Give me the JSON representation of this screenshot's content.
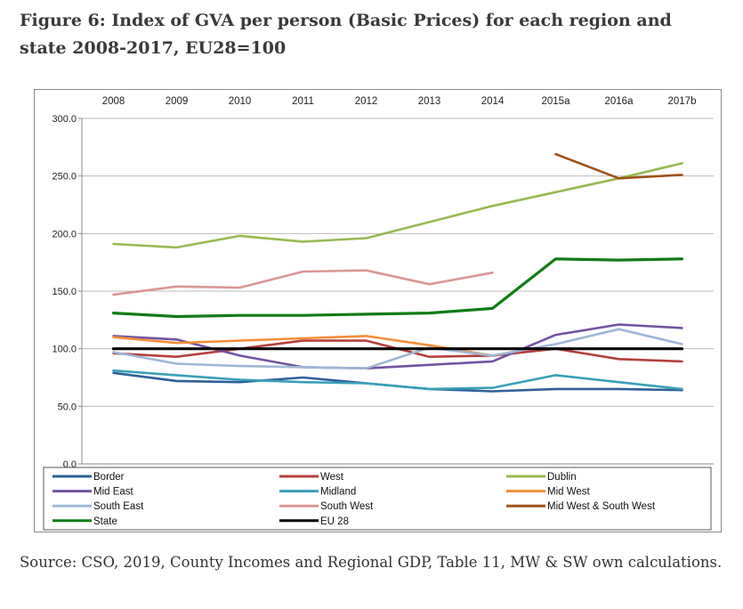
{
  "figure": {
    "title": "Figure 6: Index of GVA per person (Basic Prices) for each region and state 2008-2017, EU28=100",
    "source": "Source: CSO, 2019, County Incomes and Regional GDP, Table 11, MW & SW own calculations."
  },
  "chart_data": {
    "type": "line",
    "title": "",
    "xlabel": "",
    "ylabel": "",
    "categories": [
      "2008",
      "2009",
      "2010",
      "2011",
      "2012",
      "2013",
      "2014",
      "2015a",
      "2016a",
      "2017b"
    ],
    "x_axis_position": "top",
    "ylim": [
      0,
      300
    ],
    "yticks": [
      "0.0",
      "50.0",
      "100.0",
      "150.0",
      "200.0",
      "250.0",
      "300.0"
    ],
    "ytick_values": [
      0,
      50,
      100,
      150,
      200,
      250,
      300
    ],
    "grid": true,
    "legend_position": "bottom",
    "series": [
      {
        "name": "Border",
        "color": "#2e5f98",
        "values": [
          79,
          72,
          71,
          75,
          70,
          65,
          63,
          65,
          65,
          64
        ]
      },
      {
        "name": "West",
        "color": "#b5403d",
        "values": [
          96,
          93,
          100,
          107,
          107,
          93,
          94,
          100,
          91,
          89
        ]
      },
      {
        "name": "Dublin",
        "color": "#98b954",
        "values": [
          191,
          188,
          198,
          193,
          196,
          210,
          224,
          236,
          248,
          261
        ]
      },
      {
        "name": "Mid East",
        "color": "#7354a0",
        "values": [
          111,
          108,
          94,
          84,
          83,
          86,
          89,
          112,
          121,
          118
        ]
      },
      {
        "name": "Midland",
        "color": "#3aa0b7",
        "values": [
          81,
          77,
          73,
          71,
          70,
          65,
          66,
          77,
          71,
          65
        ]
      },
      {
        "name": "Mid West",
        "color": "#f38e3a",
        "values": [
          110,
          105,
          107,
          109,
          111,
          103,
          94,
          null,
          null,
          null
        ]
      },
      {
        "name": "South East",
        "color": "#a0b7d7",
        "values": [
          97,
          87,
          85,
          84,
          83,
          101,
          94,
          104,
          117,
          104
        ]
      },
      {
        "name": "South West",
        "color": "#d89795",
        "values": [
          147,
          154,
          153,
          167,
          168,
          156,
          166,
          null,
          null,
          null
        ]
      },
      {
        "name": "Mid West & South West",
        "color": "#9f5218",
        "values": [
          null,
          null,
          null,
          null,
          null,
          null,
          null,
          269,
          248,
          251
        ]
      },
      {
        "name": "State",
        "color": "#117b17",
        "values": [
          131,
          128,
          129,
          129,
          130,
          131,
          135,
          178,
          177,
          178
        ]
      },
      {
        "name": "EU 28",
        "color": "#000000",
        "values": [
          100,
          100,
          100,
          100,
          100,
          100,
          100,
          100,
          100,
          100
        ]
      }
    ]
  }
}
